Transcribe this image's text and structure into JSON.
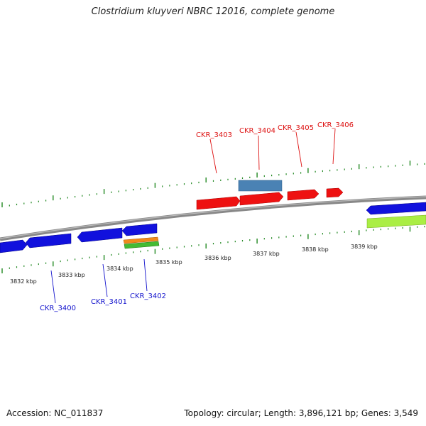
{
  "title": "Clostridium kluyveri NBRC 12016, complete genome",
  "footer": {
    "accession": "Accession: NC_011837",
    "summary": "Topology: circular; Length: 3,896,121 bp; Genes: 3,549"
  },
  "axis": {
    "tick_labels": [
      "3832 kbp",
      "3833 kbp",
      "3834 kbp",
      "3835 kbp",
      "3836 kbp",
      "3837 kbp",
      "3838 kbp",
      "3839 kbp"
    ]
  },
  "gene_labels": {
    "CKR_3400": "CKR_3400",
    "CKR_3401": "CKR_3401",
    "CKR_3402": "CKR_3402",
    "CKR_3403": "CKR_3403",
    "CKR_3404": "CKR_3404",
    "CKR_3405": "CKR_3405",
    "CKR_3406": "CKR_3406"
  },
  "colors": {
    "forward_gene": "#ee1111",
    "reverse_gene": "#1111dd",
    "forward_label": "#dd1111",
    "reverse_label": "#1111cc",
    "rna_gene": "#4a82b4",
    "orange_gene": "#f08a1c",
    "green_gene": "#44bb33",
    "lime_gene": "#aaee44",
    "backbone": "#777777",
    "ticks": "#228822"
  }
}
